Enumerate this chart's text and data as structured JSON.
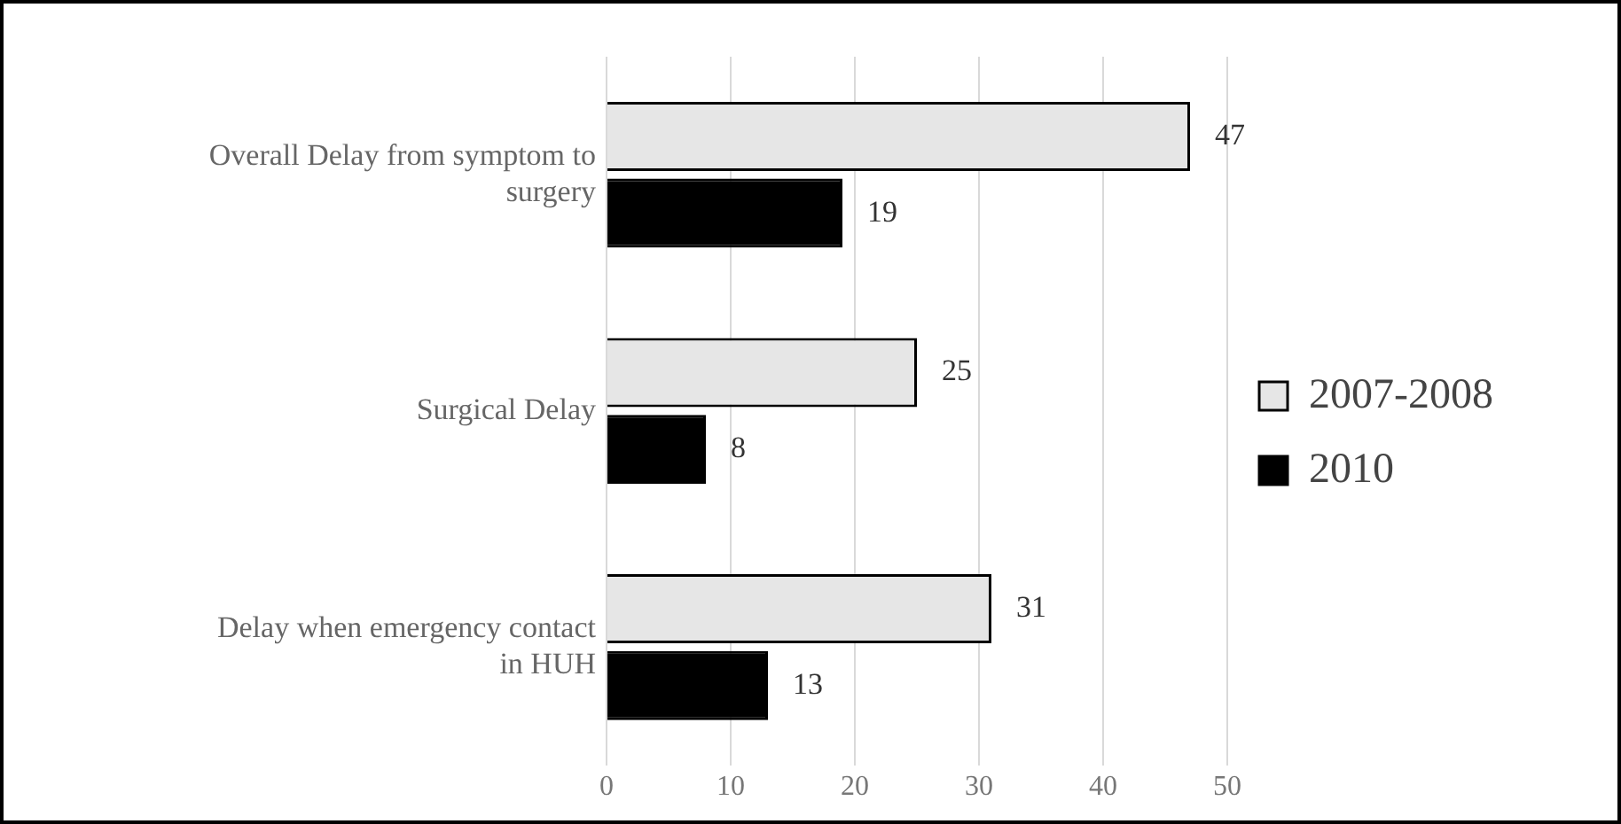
{
  "chart_data": {
    "type": "bar",
    "orientation": "horizontal",
    "categories": [
      "Overall Delay from symptom to surgery",
      "Surgical Delay",
      "Delay when emergency contact in HUH"
    ],
    "series": [
      {
        "name": "2007-2008",
        "color": "#e6e6e6",
        "values": [
          47,
          25,
          31
        ]
      },
      {
        "name": "2010",
        "color": "#000000",
        "values": [
          19,
          8,
          13
        ]
      }
    ],
    "xlim": [
      0,
      50
    ],
    "xticks": [
      0,
      10,
      20,
      30,
      40,
      50
    ],
    "grid": "x",
    "legend": "right",
    "data_labels": true
  }
}
